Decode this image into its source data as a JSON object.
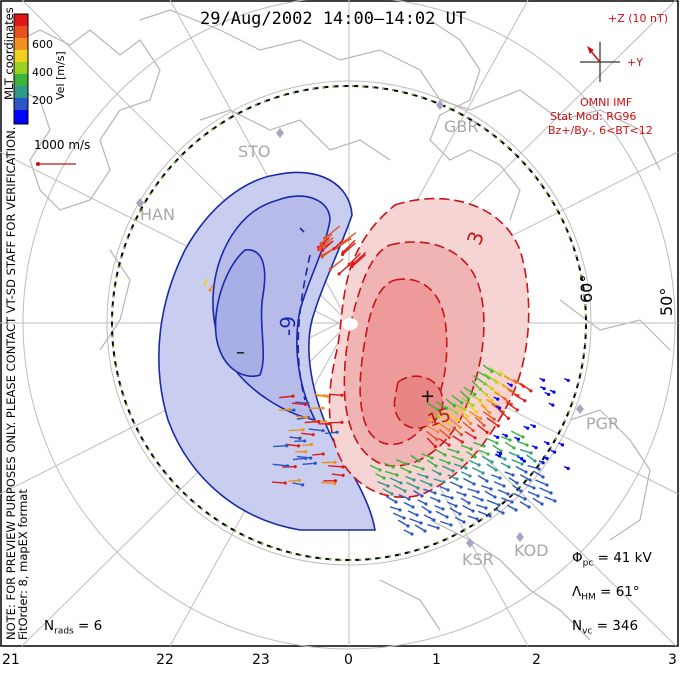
{
  "title": "29/Aug/2002 14:00–14:02 UT",
  "notes": {
    "coordinates": "MLT coordinates",
    "preview": "NOTE: FOR PREVIEW PURPOSES ONLY. PLEASE CONTACT VT-SD STAFF FOR VERIFICATION.",
    "fitorder": "FitOrder: 8, mapEX format"
  },
  "color_scale": {
    "label": "Vel [m/s]",
    "ticks": [
      "600",
      "400",
      "200"
    ],
    "colors": [
      "#0000ff",
      "#2a56c6",
      "#2f9a8a",
      "#3cb43c",
      "#9ad020",
      "#f0d020",
      "#f09020",
      "#e85020",
      "#e01818"
    ]
  },
  "reference_vector": "1000 m/s",
  "imf": {
    "plus_z": "+Z (10 nT)",
    "plus_y": "+Y",
    "source": "OMNI IMF",
    "model": "Stat Mod: RG96",
    "condition": "Bz+/By-, 6<BT<12"
  },
  "stations": [
    "STO",
    "HAN",
    "GBR",
    "PGR",
    "KSR",
    "KOD"
  ],
  "latitude_labels": [
    "60°",
    "50°"
  ],
  "contour_labels": [
    "-9",
    "3",
    "-15",
    "15"
  ],
  "extrema": {
    "min": "–",
    "max": "+"
  },
  "stats": {
    "phi_symbol": "Φ",
    "phi_sub": "pc",
    "phi_value": "= 41 kV",
    "lambda_symbol": "Λ",
    "lambda_sub": "HM",
    "lambda_value": "= 61°",
    "nvc_symbol": "N",
    "nvc_sub": "vc",
    "nvc_value": "= 346",
    "nrads_symbol": "N",
    "nrads_sub": "rads",
    "nrads_value": "= 6"
  },
  "mlt_axis": [
    "21",
    "22",
    "23",
    "0",
    "1",
    "2",
    "3"
  ],
  "colors": {
    "negative_cell_fill": "#c9cdef",
    "negative_core_fill": "#a8aee6",
    "negative_line": "#1a2aa8",
    "positive_cell_fill": "#f6d4d4",
    "positive_core_fill": "#ee9a9a",
    "positive_line": "#c81414",
    "map_outline": "#b0b0b0"
  }
}
